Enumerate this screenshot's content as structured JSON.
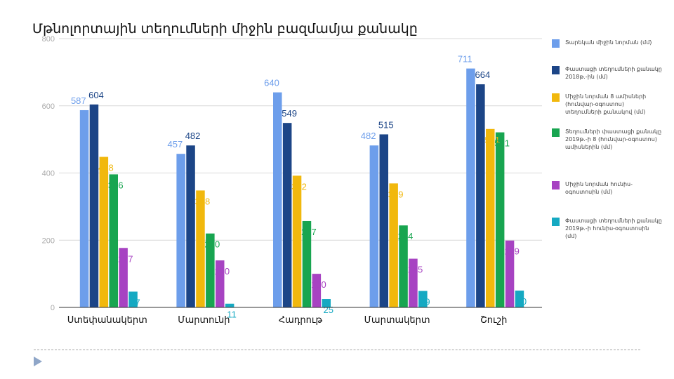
{
  "slide": {
    "title": "Մթնոլորտային տեղումների միջին բազմամյա քանակը"
  },
  "chart_data": {
    "type": "bar",
    "title": "Մթնոլորտային տեղումների միջին բազմամյա քանակը",
    "xlabel": "",
    "ylabel": "",
    "ylim": [
      0,
      800
    ],
    "yticks": [
      0,
      200,
      400,
      600,
      800
    ],
    "grid": true,
    "legend_position": "right",
    "categories": [
      "Ստեփանակերտ",
      "Մարտունի",
      "Հադրութ",
      "Մարտակերտ",
      "Շուշի"
    ],
    "series": [
      {
        "name": "Տարեկան միջին նորման (մմ)",
        "color": "#6d9eeb",
        "values": [
          587,
          457,
          640,
          482,
          711
        ]
      },
      {
        "name": "Փաստացի տեղումների քանակը 2018թ.-ին (մմ)",
        "color": "#1c4587",
        "values": [
          604,
          482,
          549,
          515,
          664
        ]
      },
      {
        "name": "Միջին նորման 8 ամիսների (հունվար-օգոստոս) տեղումների քանակով (մմ)",
        "color": "#f1b80d",
        "values": [
          448,
          348,
          392,
          369,
          531
        ]
      },
      {
        "name": "Տեղումների փաստացի քանակը 2019թ.-ի 8 (հունվար-օգոստոս) ամիսներին (մմ)",
        "color": "#18a550",
        "values": [
          396,
          220,
          257,
          244,
          521
        ]
      },
      {
        "name": "Միջին նորման հունիս-օգոստոսին (մմ)",
        "color": "#a743c2",
        "values": [
          177,
          140,
          100,
          145,
          199
        ]
      },
      {
        "name": "Փաստացի տեղումների քանակը 2019թ.-ի հունիս-օգոստոսին (մմ)",
        "color": "#15a9c2",
        "values": [
          47,
          11,
          25,
          49,
          50
        ]
      }
    ]
  }
}
